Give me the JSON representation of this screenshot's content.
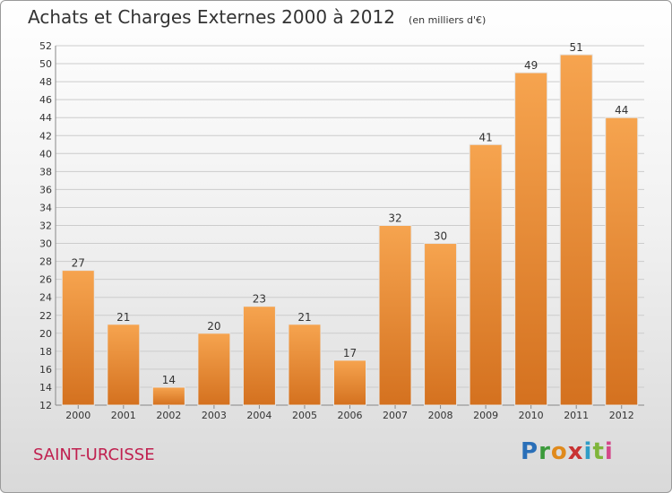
{
  "header": {
    "title": "Achats et Charges Externes 2000 à 2012",
    "subtitle": "(en milliers d'€)"
  },
  "footer": {
    "commune": "SAINT-URCISSE",
    "logo_text": "Proxiti"
  },
  "colors": {
    "bar_top": "#f6a44f",
    "bar_bottom": "#d4711f",
    "grid": "#cccccc",
    "axis": "#888888",
    "text": "#333333",
    "commune": "#c0204f"
  },
  "chart_data": {
    "type": "bar",
    "title": "Achats et Charges Externes 2000 à 2012",
    "subtitle": "(en milliers d'€)",
    "xlabel": "",
    "ylabel": "",
    "categories": [
      "2000",
      "2001",
      "2002",
      "2003",
      "2004",
      "2005",
      "2006",
      "2007",
      "2008",
      "2009",
      "2010",
      "2011",
      "2012"
    ],
    "values": [
      27,
      21,
      14,
      20,
      23,
      21,
      17,
      32,
      30,
      41,
      49,
      51,
      44
    ],
    "ylim": [
      12,
      52
    ],
    "yticks": [
      12,
      14,
      16,
      18,
      20,
      22,
      24,
      26,
      28,
      30,
      32,
      34,
      36,
      38,
      40,
      42,
      44,
      46,
      48,
      50,
      52
    ],
    "grid": true,
    "legend": "none"
  }
}
